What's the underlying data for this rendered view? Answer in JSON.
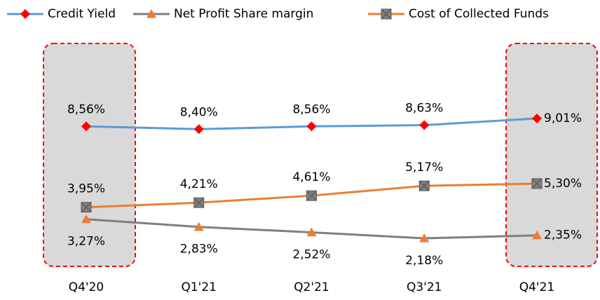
{
  "chart_data": {
    "type": "line",
    "categories": [
      "Q4'20",
      "Q1'21",
      "Q2'21",
      "Q3'21",
      "Q4'21"
    ],
    "series": [
      {
        "name": "Credit Yield",
        "color": "#5b9bd5",
        "marker_color": "#ff0000",
        "marker": "diamond",
        "values": [
          8.56,
          8.4,
          8.56,
          8.63,
          9.01
        ],
        "value_labels": [
          "8,56%",
          "8,40%",
          "8,56%",
          "8,63%",
          "9,01%"
        ]
      },
      {
        "name": "Net Profit Share margin",
        "color": "#7f7f7f",
        "marker_color": "#ed7d31",
        "marker": "triangle",
        "values": [
          3.27,
          2.83,
          2.52,
          2.18,
          2.35
        ],
        "value_labels": [
          "3,27%",
          "2,83%",
          "2,52%",
          "2,18%",
          "2,35%"
        ]
      },
      {
        "name": "Cost of Collected Funds",
        "color": "#ed7d31",
        "marker_color": "#808080",
        "marker": "square-x",
        "values": [
          3.95,
          4.21,
          4.61,
          5.17,
          5.3
        ],
        "value_labels": [
          "3,95%",
          "4,21%",
          "4,61%",
          "5,17%",
          "5,30%"
        ]
      }
    ]
  }
}
